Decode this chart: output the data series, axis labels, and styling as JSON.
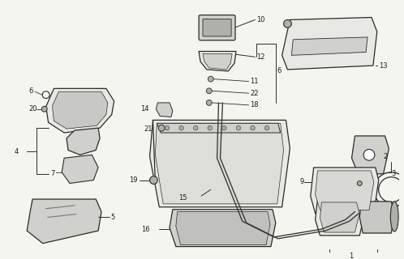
{
  "bg": "#f5f5f0",
  "lc": "#2a2a2a",
  "tc": "#1a1a1a",
  "fs": 6.0,
  "lw": 0.9
}
